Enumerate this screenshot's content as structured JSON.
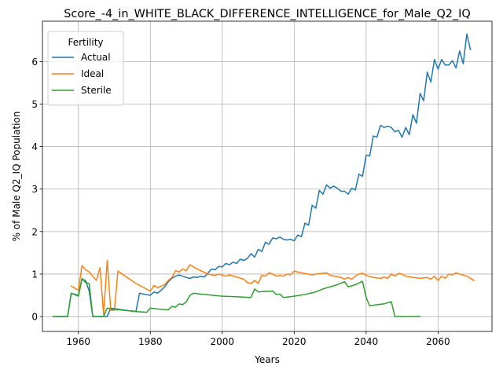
{
  "chart_data": {
    "type": "line",
    "title": "Score_-4_in_WHITE_BLACK_DIFFERENCE_INTELLIGENCE_for_Male_Q2_IQ",
    "xlabel": "Years",
    "ylabel": "% of Male Q2_IQ Population",
    "xlim": [
      1950,
      2075
    ],
    "ylim": [
      -0.35,
      6.95
    ],
    "xticks": [
      1960,
      1980,
      2000,
      2020,
      2040,
      2060
    ],
    "yticks": [
      0,
      1,
      2,
      3,
      4,
      5,
      6
    ],
    "grid": true,
    "legend": {
      "title": "Fertility",
      "placement": "top-left"
    },
    "series": [
      {
        "name": "Actual",
        "color": "#1f77b4",
        "points": [
          [
            1953,
            0
          ],
          [
            1957,
            0
          ],
          [
            1958,
            0.55
          ],
          [
            1960,
            0.5
          ],
          [
            1961,
            0.88
          ],
          [
            1962,
            0.85
          ],
          [
            1963,
            0.6
          ],
          [
            1964,
            0
          ],
          [
            1968,
            0
          ],
          [
            1969,
            0.2
          ],
          [
            1973,
            0.15
          ],
          [
            1976,
            0.12
          ],
          [
            1977,
            0.55
          ],
          [
            1980,
            0.5
          ],
          [
            1981,
            0.58
          ],
          [
            1982,
            0.55
          ],
          [
            1983,
            0.62
          ],
          [
            1984,
            0.7
          ],
          [
            1985,
            0.82
          ],
          [
            1986,
            0.9
          ],
          [
            1987,
            0.95
          ],
          [
            1988,
            0.98
          ],
          [
            1989,
            0.95
          ],
          [
            1990,
            0.92
          ],
          [
            1991,
            0.9
          ],
          [
            1992,
            0.93
          ],
          [
            1993,
            0.92
          ],
          [
            1994,
            0.95
          ],
          [
            1995,
            0.93
          ],
          [
            1996,
            1.02
          ],
          [
            1997,
            1.12
          ],
          [
            1998,
            1.1
          ],
          [
            1999,
            1.18
          ],
          [
            2000,
            1.17
          ],
          [
            2001,
            1.25
          ],
          [
            2002,
            1.22
          ],
          [
            2003,
            1.28
          ],
          [
            2004,
            1.25
          ],
          [
            2005,
            1.35
          ],
          [
            2006,
            1.32
          ],
          [
            2007,
            1.37
          ],
          [
            2008,
            1.48
          ],
          [
            2009,
            1.4
          ],
          [
            2010,
            1.58
          ],
          [
            2011,
            1.53
          ],
          [
            2012,
            1.75
          ],
          [
            2013,
            1.7
          ],
          [
            2014,
            1.85
          ],
          [
            2015,
            1.83
          ],
          [
            2016,
            1.87
          ],
          [
            2017,
            1.82
          ],
          [
            2018,
            1.8
          ],
          [
            2019,
            1.82
          ],
          [
            2020,
            1.78
          ],
          [
            2021,
            1.92
          ],
          [
            2022,
            1.88
          ],
          [
            2023,
            2.2
          ],
          [
            2024,
            2.15
          ],
          [
            2025,
            2.62
          ],
          [
            2026,
            2.55
          ],
          [
            2027,
            2.97
          ],
          [
            2028,
            2.88
          ],
          [
            2029,
            3.1
          ],
          [
            2030,
            3.02
          ],
          [
            2031,
            3.07
          ],
          [
            2032,
            3.02
          ],
          [
            2033,
            2.95
          ],
          [
            2034,
            2.95
          ],
          [
            2035,
            2.88
          ],
          [
            2036,
            3.02
          ],
          [
            2037,
            2.98
          ],
          [
            2038,
            3.35
          ],
          [
            2039,
            3.3
          ],
          [
            2040,
            3.8
          ],
          [
            2041,
            3.78
          ],
          [
            2042,
            4.25
          ],
          [
            2043,
            4.22
          ],
          [
            2044,
            4.5
          ],
          [
            2045,
            4.45
          ],
          [
            2046,
            4.48
          ],
          [
            2047,
            4.45
          ],
          [
            2048,
            4.35
          ],
          [
            2049,
            4.38
          ],
          [
            2050,
            4.22
          ],
          [
            2051,
            4.45
          ],
          [
            2052,
            4.28
          ],
          [
            2053,
            4.75
          ],
          [
            2054,
            4.55
          ],
          [
            2055,
            5.25
          ],
          [
            2056,
            5.08
          ],
          [
            2057,
            5.75
          ],
          [
            2058,
            5.52
          ],
          [
            2059,
            6.05
          ],
          [
            2060,
            5.82
          ],
          [
            2061,
            6.05
          ],
          [
            2062,
            5.92
          ],
          [
            2063,
            5.92
          ],
          [
            2064,
            6.02
          ],
          [
            2065,
            5.85
          ],
          [
            2066,
            6.25
          ],
          [
            2067,
            5.95
          ],
          [
            2068,
            6.65
          ],
          [
            2069,
            6.28
          ]
        ]
      },
      {
        "name": "Ideal",
        "color": "#ff7f0e",
        "points": [
          [
            1958,
            0.72
          ],
          [
            1960,
            0.62
          ],
          [
            1961,
            1.2
          ],
          [
            1962,
            1.1
          ],
          [
            1963,
            1.05
          ],
          [
            1965,
            0.85
          ],
          [
            1966,
            1.15
          ],
          [
            1967,
            0.05
          ],
          [
            1968,
            1.32
          ],
          [
            1969,
            0.15
          ],
          [
            1970,
            0.15
          ],
          [
            1971,
            1.07
          ],
          [
            1973,
            0.95
          ],
          [
            1976,
            0.78
          ],
          [
            1980,
            0.6
          ],
          [
            1981,
            0.73
          ],
          [
            1982,
            0.68
          ],
          [
            1984,
            0.75
          ],
          [
            1985,
            0.85
          ],
          [
            1986,
            0.92
          ],
          [
            1987,
            1.08
          ],
          [
            1988,
            1.05
          ],
          [
            1989,
            1.12
          ],
          [
            1990,
            1.08
          ],
          [
            1991,
            1.22
          ],
          [
            1993,
            1.12
          ],
          [
            1996,
            1.0
          ],
          [
            1998,
            0.97
          ],
          [
            1999,
            1.0
          ],
          [
            2001,
            0.95
          ],
          [
            2002,
            0.98
          ],
          [
            2004,
            0.93
          ],
          [
            2006,
            0.88
          ],
          [
            2007,
            0.8
          ],
          [
            2008,
            0.78
          ],
          [
            2009,
            0.85
          ],
          [
            2010,
            0.78
          ],
          [
            2011,
            0.97
          ],
          [
            2012,
            0.95
          ],
          [
            2013,
            1.03
          ],
          [
            2014,
            1.0
          ],
          [
            2015,
            0.95
          ],
          [
            2016,
            0.97
          ],
          [
            2017,
            0.95
          ],
          [
            2018,
            1.0
          ],
          [
            2019,
            0.98
          ],
          [
            2020,
            1.07
          ],
          [
            2022,
            1.03
          ],
          [
            2025,
            0.98
          ],
          [
            2026,
            1.0
          ],
          [
            2029,
            1.03
          ],
          [
            2030,
            0.97
          ],
          [
            2033,
            0.92
          ],
          [
            2034,
            0.88
          ],
          [
            2035,
            0.92
          ],
          [
            2036,
            0.88
          ],
          [
            2037,
            0.95
          ],
          [
            2038,
            1.0
          ],
          [
            2039,
            1.02
          ],
          [
            2040,
            0.97
          ],
          [
            2042,
            0.92
          ],
          [
            2044,
            0.9
          ],
          [
            2045,
            0.93
          ],
          [
            2046,
            0.9
          ],
          [
            2047,
            1.0
          ],
          [
            2048,
            0.95
          ],
          [
            2049,
            1.02
          ],
          [
            2050,
            1.0
          ],
          [
            2051,
            0.95
          ],
          [
            2053,
            0.92
          ],
          [
            2055,
            0.9
          ],
          [
            2057,
            0.92
          ],
          [
            2058,
            0.88
          ],
          [
            2059,
            0.95
          ],
          [
            2060,
            0.85
          ],
          [
            2061,
            0.95
          ],
          [
            2062,
            0.9
          ],
          [
            2063,
            1.0
          ],
          [
            2064,
            0.98
          ],
          [
            2065,
            1.03
          ],
          [
            2066,
            1.0
          ],
          [
            2068,
            0.95
          ],
          [
            2070,
            0.85
          ]
        ]
      },
      {
        "name": "Sterile",
        "color": "#2ca02c",
        "points": [
          [
            1953,
            0
          ],
          [
            1957,
            0
          ],
          [
            1958,
            0.55
          ],
          [
            1960,
            0.48
          ],
          [
            1961,
            0.9
          ],
          [
            1962,
            0.8
          ],
          [
            1963,
            0.78
          ],
          [
            1964,
            0
          ],
          [
            1967,
            0
          ],
          [
            1968,
            0.2
          ],
          [
            1969,
            0.18
          ],
          [
            1976,
            0.12
          ],
          [
            1979,
            0.1
          ],
          [
            1980,
            0.2
          ],
          [
            1982,
            0.18
          ],
          [
            1985,
            0.16
          ],
          [
            1986,
            0.24
          ],
          [
            1987,
            0.22
          ],
          [
            1988,
            0.3
          ],
          [
            1989,
            0.28
          ],
          [
            1990,
            0.35
          ],
          [
            1991,
            0.5
          ],
          [
            1992,
            0.55
          ],
          [
            1995,
            0.52
          ],
          [
            2000,
            0.48
          ],
          [
            2003,
            0.47
          ],
          [
            2008,
            0.45
          ],
          [
            2009,
            0.65
          ],
          [
            2010,
            0.58
          ],
          [
            2014,
            0.6
          ],
          [
            2015,
            0.52
          ],
          [
            2016,
            0.53
          ],
          [
            2017,
            0.45
          ],
          [
            2020,
            0.48
          ],
          [
            2023,
            0.52
          ],
          [
            2026,
            0.58
          ],
          [
            2028,
            0.65
          ],
          [
            2030,
            0.7
          ],
          [
            2032,
            0.75
          ],
          [
            2034,
            0.82
          ],
          [
            2035,
            0.7
          ],
          [
            2037,
            0.75
          ],
          [
            2039,
            0.83
          ],
          [
            2040,
            0.45
          ],
          [
            2041,
            0.25
          ],
          [
            2043,
            0.28
          ],
          [
            2045,
            0.3
          ],
          [
            2047,
            0.35
          ],
          [
            2048,
            0
          ],
          [
            2055,
            0
          ]
        ]
      }
    ]
  }
}
